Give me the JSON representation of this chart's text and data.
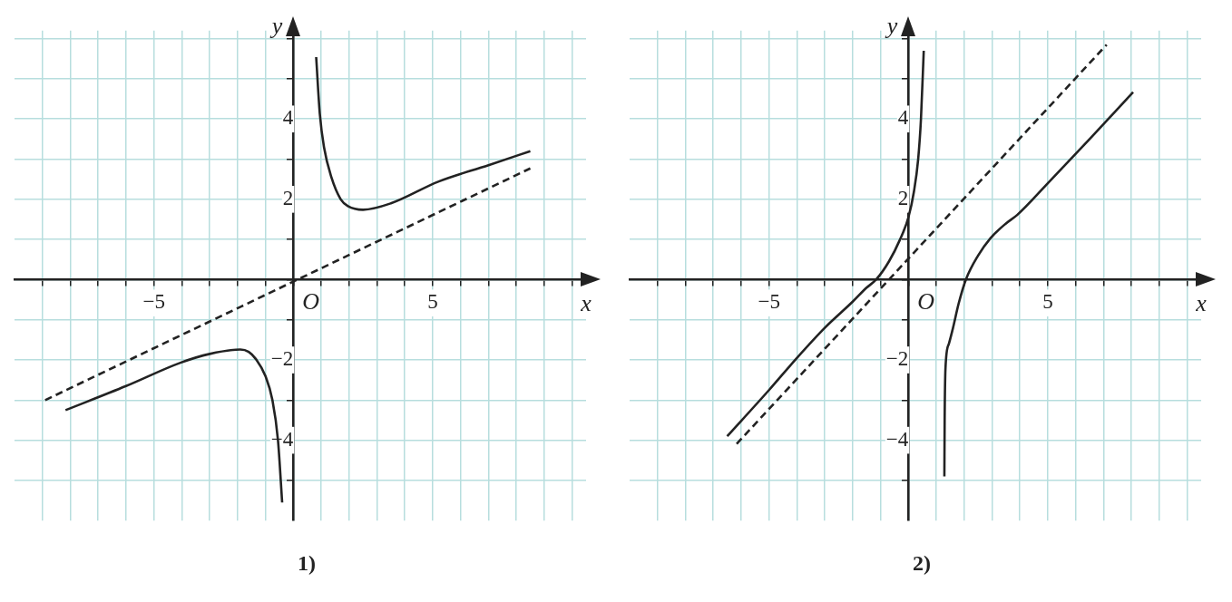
{
  "chart_data": [
    {
      "type": "line",
      "title": "1)",
      "xlabel": "x",
      "ylabel": "y",
      "xlim": [
        -10,
        10.5
      ],
      "ylim": [
        -6,
        6.2
      ],
      "annotations": [
        "O"
      ],
      "xticks": [
        {
          "value": -9,
          "label": null
        },
        {
          "value": -8,
          "label": null
        },
        {
          "value": -7,
          "label": null
        },
        {
          "value": -6,
          "label": null
        },
        {
          "value": -5,
          "label": "−5"
        },
        {
          "value": -4,
          "label": null
        },
        {
          "value": -3,
          "label": null
        },
        {
          "value": -2,
          "label": null
        },
        {
          "value": -1,
          "label": null
        },
        {
          "value": 0,
          "label": null
        },
        {
          "value": 1,
          "label": null
        },
        {
          "value": 2,
          "label": null
        },
        {
          "value": 3,
          "label": null
        },
        {
          "value": 4,
          "label": null
        },
        {
          "value": 5,
          "label": "5"
        },
        {
          "value": 6,
          "label": null
        },
        {
          "value": 7,
          "label": null
        },
        {
          "value": 8,
          "label": null
        },
        {
          "value": 9,
          "label": null
        },
        {
          "value": 10,
          "label": null
        }
      ],
      "yticks": [
        {
          "value": -5,
          "label": null
        },
        {
          "value": -4,
          "label": "−4"
        },
        {
          "value": -3,
          "label": null
        },
        {
          "value": -2,
          "label": "−2"
        },
        {
          "value": -1,
          "label": null
        },
        {
          "value": 0,
          "label": null
        },
        {
          "value": 1,
          "label": null
        },
        {
          "value": 2,
          "label": "2"
        },
        {
          "value": 3,
          "label": null
        },
        {
          "value": 4,
          "label": "4"
        },
        {
          "value": 5,
          "label": null
        },
        {
          "value": 6,
          "label": null
        }
      ],
      "grid": true,
      "series": [
        {
          "color": "#222222",
          "x": [
            0.82,
            0.95,
            1.1,
            1.37,
            1.7,
            1.96,
            2.5,
            3.5,
            5.2,
            7,
            8.5
          ],
          "values": [
            5.54,
            4.13,
            3.3,
            2.54,
            2.0,
            1.83,
            1.74,
            1.9,
            2.44,
            2.85,
            3.2
          ]
        },
        {
          "color": "#222222",
          "x": [
            -8.17,
            -6,
            -4.05,
            -3,
            -1.9,
            -1.6,
            -1.34,
            -1,
            -0.75,
            -0.55,
            -0.4
          ],
          "values": [
            -3.25,
            -2.65,
            -2.07,
            -1.85,
            -1.74,
            -1.8,
            -1.98,
            -2.4,
            -3.0,
            -4.0,
            -5.55
          ]
        },
        {
          "color": "#222222",
          "line_style": "dashed",
          "x": [
            -8.9,
            8.5
          ],
          "values": [
            -3.0,
            2.77
          ]
        }
      ]
    },
    {
      "type": "line",
      "title": "2)",
      "xlabel": "x",
      "ylabel": "y",
      "xlim": [
        -10,
        10.5
      ],
      "ylim": [
        -6,
        6.2
      ],
      "annotations": [
        "O"
      ],
      "xticks": [
        {
          "value": -9,
          "label": null
        },
        {
          "value": -8,
          "label": null
        },
        {
          "value": -7,
          "label": null
        },
        {
          "value": -6,
          "label": null
        },
        {
          "value": -5,
          "label": "−5"
        },
        {
          "value": -4,
          "label": null
        },
        {
          "value": -3,
          "label": null
        },
        {
          "value": -2,
          "label": null
        },
        {
          "value": -1,
          "label": null
        },
        {
          "value": 0,
          "label": null
        },
        {
          "value": 1,
          "label": null
        },
        {
          "value": 2,
          "label": null
        },
        {
          "value": 3,
          "label": null
        },
        {
          "value": 4,
          "label": null
        },
        {
          "value": 5,
          "label": "5"
        },
        {
          "value": 6,
          "label": null
        },
        {
          "value": 7,
          "label": null
        },
        {
          "value": 8,
          "label": null
        },
        {
          "value": 9,
          "label": null
        },
        {
          "value": 10,
          "label": null
        }
      ],
      "yticks": [
        {
          "value": -5,
          "label": null
        },
        {
          "value": -4,
          "label": "−4"
        },
        {
          "value": -3,
          "label": null
        },
        {
          "value": -2,
          "label": "−2"
        },
        {
          "value": -1,
          "label": null
        },
        {
          "value": 0,
          "label": null
        },
        {
          "value": 1,
          "label": null
        },
        {
          "value": 2,
          "label": "2"
        },
        {
          "value": 3,
          "label": null
        },
        {
          "value": 4,
          "label": "4"
        },
        {
          "value": 5,
          "label": null
        },
        {
          "value": 6,
          "label": null
        }
      ],
      "grid": true,
      "series": [
        {
          "color": "#222222",
          "x": [
            -6.5,
            -5,
            -4,
            -3,
            -2,
            -1.5,
            -1.16,
            -0.7,
            -0.3,
            0,
            0.2,
            0.35,
            0.45,
            0.55
          ],
          "values": [
            -3.9,
            -2.75,
            -1.95,
            -1.2,
            -0.55,
            -0.2,
            0,
            0.45,
            1.0,
            1.55,
            2.2,
            3.0,
            4.0,
            5.7
          ]
        },
        {
          "color": "#222222",
          "x": [
            1.29,
            1.3,
            1.33,
            1.45,
            1.6,
            1.8,
            2.06,
            2.5,
            2.94,
            3.5,
            3.9,
            5,
            6.5,
            8.06
          ],
          "values": [
            -4.9,
            -3.5,
            -2.2,
            -1.6,
            -1.2,
            -0.6,
            0,
            0.6,
            1.03,
            1.4,
            1.61,
            2.4,
            3.5,
            4.67
          ]
        },
        {
          "color": "#222222",
          "line_style": "dashed",
          "x": [
            -6.16,
            7.11
          ],
          "values": [
            -4.09,
            5.85
          ]
        }
      ]
    }
  ]
}
